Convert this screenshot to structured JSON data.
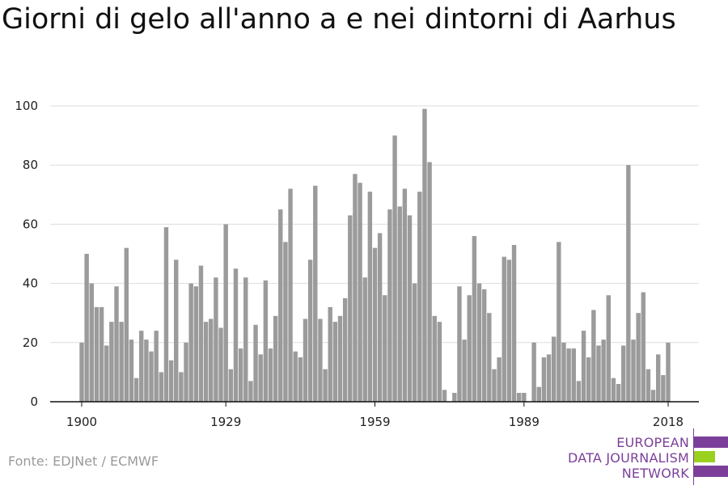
{
  "header": {
    "title": "Giorni di gelo all'anno a e nei dintorni di Aarhus"
  },
  "footer": {
    "source": "Fonte: EDJNet / ECMWF"
  },
  "logo": {
    "line1": "EUROPEAN",
    "line2": "DATA JOURNALISM",
    "line3": "NETWORK",
    "colors": {
      "purple": "#7b3f9a",
      "green": "#9ad11f"
    }
  },
  "chart_data": {
    "type": "bar",
    "title": "Giorni di gelo all'anno a e nei dintorni di Aarhus",
    "xlabel": "",
    "ylabel": "",
    "ylim": [
      0,
      100
    ],
    "yticks": [
      0,
      20,
      40,
      60,
      80,
      100
    ],
    "xticks": [
      1900,
      1929,
      1959,
      1989,
      2018
    ],
    "grid": true,
    "bar_color": "#9b9b9b",
    "x": [
      1900,
      1901,
      1902,
      1903,
      1904,
      1905,
      1906,
      1907,
      1908,
      1909,
      1910,
      1911,
      1912,
      1913,
      1914,
      1915,
      1916,
      1917,
      1918,
      1919,
      1920,
      1921,
      1922,
      1923,
      1924,
      1925,
      1926,
      1927,
      1928,
      1929,
      1930,
      1931,
      1932,
      1933,
      1934,
      1935,
      1936,
      1937,
      1938,
      1939,
      1940,
      1941,
      1942,
      1943,
      1944,
      1945,
      1946,
      1947,
      1948,
      1949,
      1950,
      1951,
      1952,
      1953,
      1954,
      1955,
      1956,
      1957,
      1958,
      1959,
      1960,
      1961,
      1962,
      1963,
      1964,
      1965,
      1966,
      1967,
      1968,
      1969,
      1970,
      1971,
      1972,
      1973,
      1974,
      1975,
      1976,
      1977,
      1978,
      1979,
      1980,
      1981,
      1982,
      1983,
      1984,
      1985,
      1986,
      1987,
      1988,
      1989,
      1990,
      1991,
      1992,
      1993,
      1994,
      1995,
      1996,
      1997,
      1998,
      1999,
      2000,
      2001,
      2002,
      2003,
      2004,
      2005,
      2006,
      2007,
      2008,
      2009,
      2010,
      2011,
      2012,
      2013,
      2014,
      2015,
      2016,
      2017,
      2018
    ],
    "values": [
      20,
      50,
      40,
      32,
      32,
      19,
      27,
      39,
      27,
      52,
      21,
      8,
      24,
      21,
      17,
      24,
      10,
      59,
      14,
      48,
      10,
      20,
      40,
      39,
      46,
      27,
      28,
      42,
      25,
      60,
      11,
      45,
      18,
      42,
      7,
      26,
      16,
      41,
      18,
      29,
      65,
      54,
      72,
      17,
      15,
      28,
      48,
      73,
      28,
      11,
      32,
      27,
      29,
      35,
      63,
      77,
      74,
      42,
      71,
      52,
      57,
      36,
      65,
      90,
      66,
      72,
      63,
      40,
      71,
      99,
      81,
      29,
      27,
      4,
      0,
      3,
      39,
      21,
      36,
      56,
      40,
      38,
      30,
      11,
      15,
      49,
      48,
      53,
      3,
      3,
      0,
      20,
      5,
      15,
      16,
      22,
      54,
      20,
      18,
      18,
      7,
      24,
      15,
      31,
      19,
      21,
      36,
      8,
      6,
      19,
      80,
      21,
      30,
      37,
      11,
      4,
      16,
      9,
      20
    ]
  }
}
